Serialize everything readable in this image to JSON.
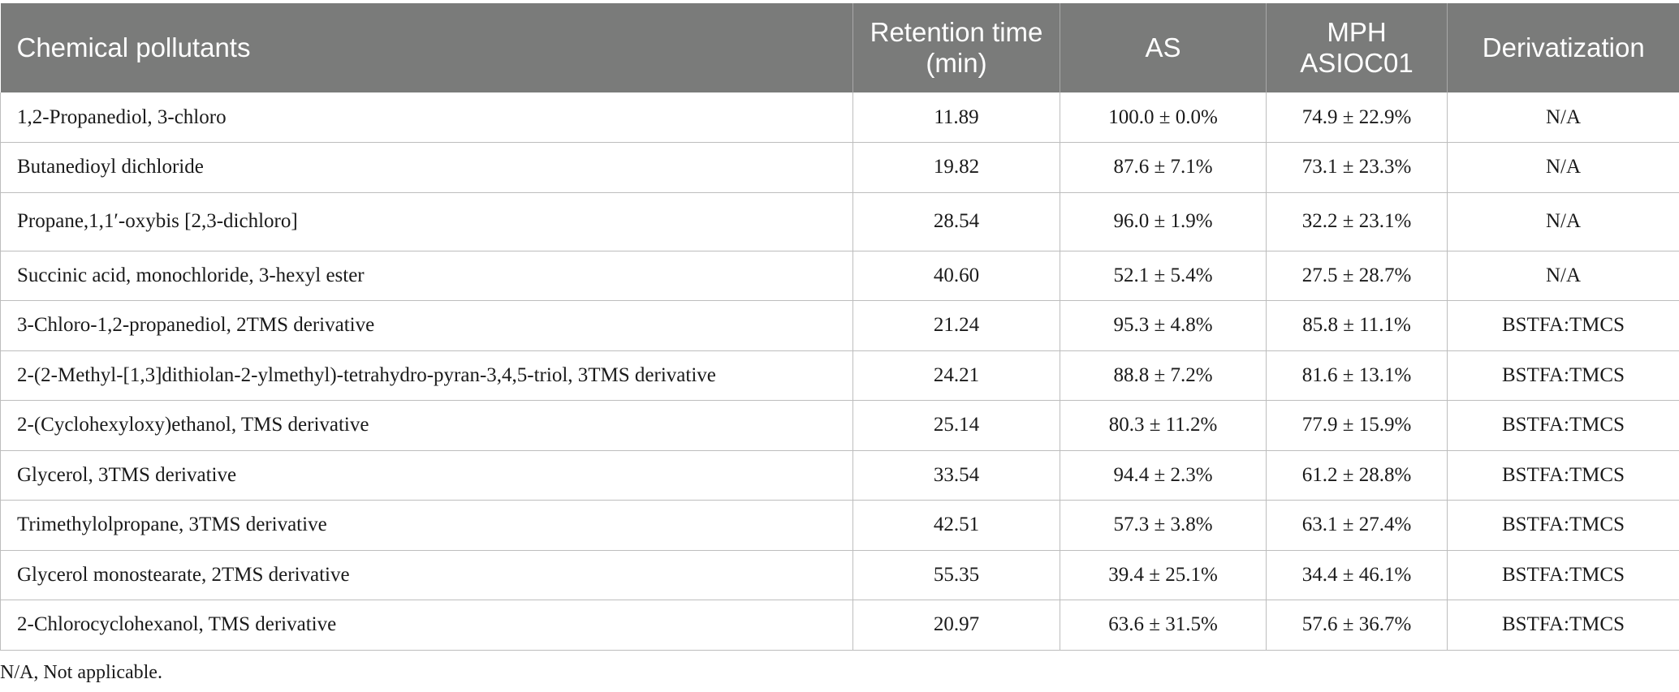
{
  "table": {
    "headers": [
      "Chemical pollutants",
      "Retention time (min)",
      "AS",
      "MPH ASIOC01",
      "Derivatization"
    ],
    "rows": [
      [
        "1,2-Propanediol, 3-chloro",
        "11.89",
        "100.0 ± 0.0%",
        "74.9 ± 22.9%",
        "N/A"
      ],
      [
        "Butanedioyl dichloride",
        "19.82",
        "87.6 ± 7.1%",
        "73.1 ± 23.3%",
        "N/A"
      ],
      [
        "Propane,1,1′-oxybis [2,3-dichloro]",
        "28.54",
        "96.0 ± 1.9%",
        "32.2 ± 23.1%",
        "N/A"
      ],
      [
        "Succinic acid, monochloride, 3-hexyl ester",
        "40.60",
        "52.1 ± 5.4%",
        "27.5 ± 28.7%",
        "N/A"
      ],
      [
        "3-Chloro-1,2-propanediol, 2TMS derivative",
        "21.24",
        "95.3 ± 4.8%",
        "85.8 ± 11.1%",
        "BSTFA:TMCS"
      ],
      [
        "2-(2-Methyl-[1,3]dithiolan-2-ylmethyl)-tetrahydro-pyran-3,4,5-triol, 3TMS derivative",
        "24.21",
        "88.8 ± 7.2%",
        "81.6 ± 13.1%",
        "BSTFA:TMCS"
      ],
      [
        "2-(Cyclohexyloxy)ethanol, TMS derivative",
        "25.14",
        "80.3 ± 11.2%",
        "77.9 ± 15.9%",
        "BSTFA:TMCS"
      ],
      [
        "Glycerol, 3TMS derivative",
        "33.54",
        "94.4 ± 2.3%",
        "61.2 ± 28.8%",
        "BSTFA:TMCS"
      ],
      [
        "Trimethylolpropane, 3TMS derivative",
        "42.51",
        "57.3 ± 3.8%",
        "63.1 ± 27.4%",
        "BSTFA:TMCS"
      ],
      [
        "Glycerol monostearate, 2TMS derivative",
        "55.35",
        "39.4 ± 25.1%",
        "34.4 ± 46.1%",
        "BSTFA:TMCS"
      ],
      [
        "2-Chlorocyclohexanol, TMS derivative",
        "20.97",
        "63.6 ± 31.5%",
        "57.6 ± 36.7%",
        "BSTFA:TMCS"
      ]
    ]
  },
  "footnote": "N/A, Not applicable.",
  "colors": {
    "header_bg": "#7a7b7a",
    "header_text": "#ffffff",
    "grid": "#bdbdbd"
  }
}
